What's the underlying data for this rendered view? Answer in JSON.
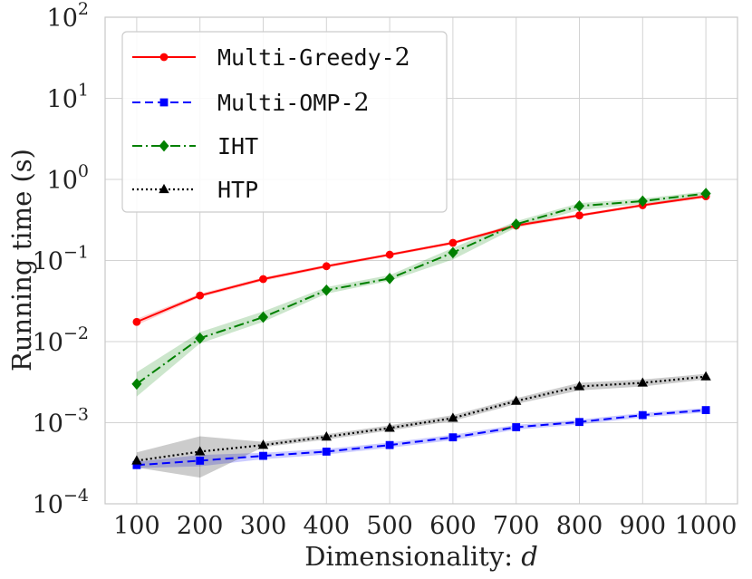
{
  "chart_data": {
    "type": "line",
    "xlabel": "Dimensionality:",
    "xlabel_var": "d",
    "ylabel": "Running time (s)",
    "yscale": "log",
    "ylim": [
      0.0001,
      100
    ],
    "xlim": [
      50,
      1050
    ],
    "y_ticks": [
      {
        "value": 0.0001,
        "base": "10",
        "exp": "−4"
      },
      {
        "value": 0.001,
        "base": "10",
        "exp": "−3"
      },
      {
        "value": 0.01,
        "base": "10",
        "exp": "−2"
      },
      {
        "value": 0.1,
        "base": "10",
        "exp": "−1"
      },
      {
        "value": 1,
        "base": "10",
        "exp": "0"
      },
      {
        "value": 10,
        "base": "10",
        "exp": "1"
      },
      {
        "value": 100,
        "base": "10",
        "exp": "2"
      }
    ],
    "x": [
      100,
      200,
      300,
      400,
      500,
      600,
      700,
      800,
      900,
      1000
    ],
    "x_tick_labels": [
      "100",
      "200",
      "300",
      "400",
      "500",
      "600",
      "700",
      "800",
      "900",
      "1000"
    ],
    "grid": true,
    "legend_position": "top-left",
    "series": [
      {
        "name": "Multi-Greedy-",
        "name_num": "2",
        "color": "#ff0000",
        "dash": "solid",
        "marker": "circle",
        "values": [
          0.0175,
          0.037,
          0.059,
          0.085,
          0.118,
          0.165,
          0.27,
          0.36,
          0.48,
          0.62
        ],
        "lower": [
          0.016,
          0.035,
          0.056,
          0.081,
          0.113,
          0.158,
          0.255,
          0.345,
          0.46,
          0.59
        ],
        "upper": [
          0.019,
          0.039,
          0.062,
          0.089,
          0.123,
          0.172,
          0.285,
          0.375,
          0.5,
          0.65
        ]
      },
      {
        "name": "Multi-OMP-",
        "name_num": "2",
        "color": "#0000ff",
        "dash": "dashed",
        "marker": "square",
        "values": [
          0.0003,
          0.00034,
          0.00039,
          0.00044,
          0.00053,
          0.00066,
          0.00088,
          0.00102,
          0.00124,
          0.00143
        ],
        "lower": [
          0.000275,
          0.00029,
          0.000355,
          0.000405,
          0.00049,
          0.00061,
          0.00082,
          0.00095,
          0.00116,
          0.00134
        ],
        "upper": [
          0.00033,
          0.0004,
          0.000425,
          0.000475,
          0.00057,
          0.00071,
          0.00094,
          0.00109,
          0.00132,
          0.00152
        ]
      },
      {
        "name": "IHT",
        "name_num": "",
        "color": "#008000",
        "dash": "dashdot",
        "marker": "diamond",
        "values": [
          0.003,
          0.011,
          0.02,
          0.043,
          0.06,
          0.125,
          0.28,
          0.47,
          0.54,
          0.67
        ],
        "lower": [
          0.0021,
          0.0095,
          0.0175,
          0.039,
          0.056,
          0.103,
          0.255,
          0.42,
          0.5,
          0.62
        ],
        "upper": [
          0.0042,
          0.0131,
          0.0235,
          0.047,
          0.066,
          0.143,
          0.305,
          0.51,
          0.58,
          0.71
        ]
      },
      {
        "name": "HTP",
        "name_num": "",
        "color": "#000000",
        "dash": "dotted",
        "marker": "triangle",
        "values": [
          0.00034,
          0.00044,
          0.00053,
          0.00067,
          0.00086,
          0.00114,
          0.00185,
          0.0028,
          0.0031,
          0.0037
        ],
        "lower": [
          0.00028,
          0.00021,
          0.0005,
          0.00062,
          0.0008,
          0.00105,
          0.0017,
          0.0025,
          0.0028,
          0.0034
        ],
        "upper": [
          0.00043,
          0.00068,
          0.00058,
          0.00072,
          0.00093,
          0.00124,
          0.002,
          0.0031,
          0.0034,
          0.004
        ]
      }
    ]
  }
}
